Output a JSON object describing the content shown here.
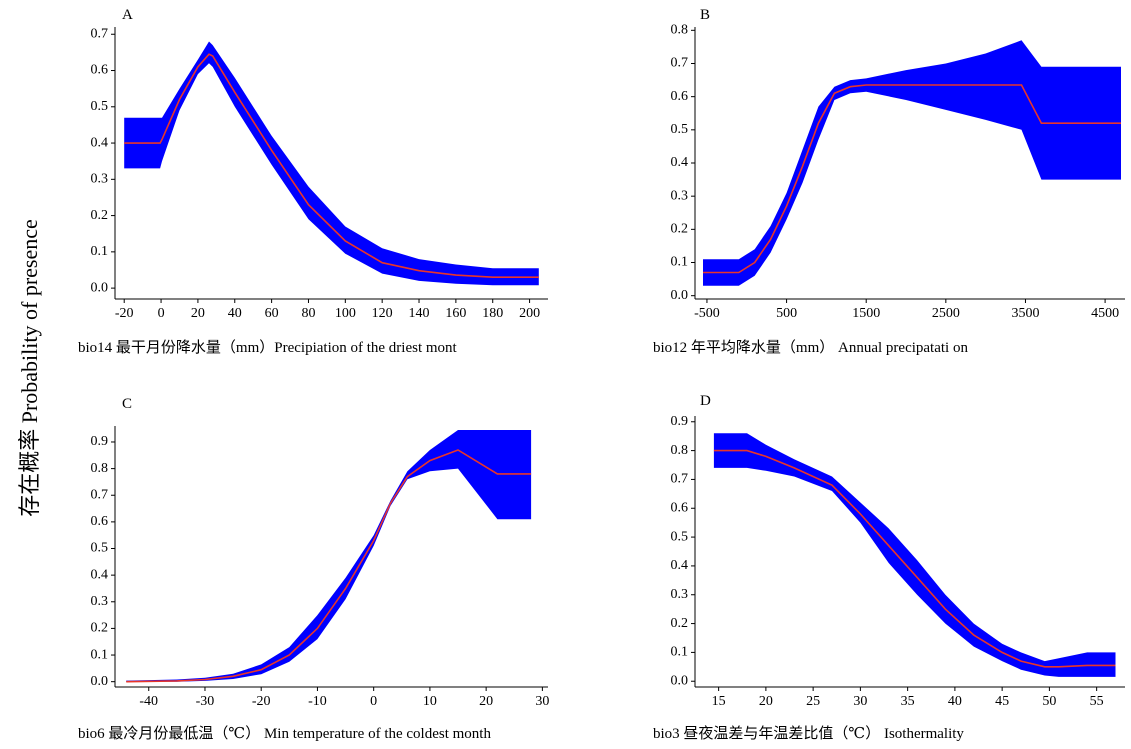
{
  "figure": {
    "ylabel": "存在概率 Probability of presence"
  },
  "colors": {
    "band": "#0000ff",
    "line": "#e8352a"
  },
  "chart_data": [
    {
      "type": "area",
      "panel": "A",
      "xlabel": "bio14  最干月份降水量（mm）Precipiation of the driest mont",
      "xlim": [
        -25,
        210
      ],
      "ylim": [
        -0.03,
        0.72
      ],
      "xticks": [
        -20,
        0,
        20,
        40,
        60,
        80,
        100,
        120,
        140,
        160,
        180,
        200
      ],
      "yticks": [
        0.0,
        0.1,
        0.2,
        0.3,
        0.4,
        0.5,
        0.6,
        0.7
      ],
      "x": [
        -20,
        -0.5,
        0.5,
        10,
        20,
        26,
        28,
        40,
        60,
        80,
        100,
        120,
        140,
        160,
        180,
        205
      ],
      "mean": [
        0.4,
        0.4,
        0.41,
        0.52,
        0.61,
        0.645,
        0.64,
        0.54,
        0.38,
        0.23,
        0.13,
        0.07,
        0.048,
        0.036,
        0.03,
        0.03
      ],
      "upper": [
        0.47,
        0.47,
        0.47,
        0.55,
        0.63,
        0.68,
        0.67,
        0.58,
        0.42,
        0.28,
        0.17,
        0.11,
        0.08,
        0.065,
        0.055,
        0.055
      ],
      "lower": [
        0.33,
        0.33,
        0.35,
        0.49,
        0.59,
        0.62,
        0.61,
        0.5,
        0.34,
        0.19,
        0.095,
        0.04,
        0.02,
        0.012,
        0.008,
        0.008
      ]
    },
    {
      "type": "area",
      "panel": "B",
      "xlabel": "bio12  年平均降水量（mm）  Annual precipatati on",
      "xlim": [
        -650,
        4750
      ],
      "ylim": [
        -0.01,
        0.81
      ],
      "xticks": [
        -500,
        500,
        1500,
        2500,
        3500,
        4500
      ],
      "yticks": [
        0.0,
        0.1,
        0.2,
        0.3,
        0.4,
        0.5,
        0.6,
        0.7,
        0.8
      ],
      "x": [
        -550,
        -100,
        100,
        300,
        500,
        700,
        900,
        1100,
        1300,
        1500,
        2000,
        2500,
        3000,
        3450,
        3700,
        4700
      ],
      "mean": [
        0.07,
        0.07,
        0.1,
        0.17,
        0.27,
        0.39,
        0.52,
        0.61,
        0.63,
        0.635,
        0.635,
        0.635,
        0.635,
        0.635,
        0.52,
        0.52
      ],
      "upper": [
        0.11,
        0.11,
        0.14,
        0.21,
        0.31,
        0.44,
        0.57,
        0.63,
        0.65,
        0.655,
        0.68,
        0.7,
        0.73,
        0.77,
        0.69,
        0.69
      ],
      "lower": [
        0.03,
        0.03,
        0.06,
        0.13,
        0.23,
        0.34,
        0.47,
        0.59,
        0.61,
        0.615,
        0.59,
        0.56,
        0.53,
        0.5,
        0.35,
        0.35
      ]
    },
    {
      "type": "area",
      "panel": "C",
      "xlabel": "bio6  最冷月份最低温（℃）  Min temperature of the coldest month",
      "xlim": [
        -46,
        31
      ],
      "ylim": [
        -0.02,
        0.96
      ],
      "xticks": [
        -40,
        -30,
        -20,
        -10,
        0,
        10,
        20,
        30
      ],
      "yticks": [
        0.0,
        0.1,
        0.2,
        0.3,
        0.4,
        0.5,
        0.6,
        0.7,
        0.8,
        0.9
      ],
      "x": [
        -44,
        -35,
        -30,
        -25,
        -20,
        -15,
        -10,
        -5,
        0,
        3,
        6,
        10,
        15,
        22,
        28
      ],
      "mean": [
        0.0,
        0.003,
        0.008,
        0.02,
        0.045,
        0.1,
        0.2,
        0.35,
        0.53,
        0.67,
        0.77,
        0.83,
        0.87,
        0.78,
        0.78
      ],
      "upper": [
        0.004,
        0.008,
        0.015,
        0.03,
        0.065,
        0.13,
        0.25,
        0.39,
        0.55,
        0.68,
        0.79,
        0.87,
        0.945,
        0.945,
        0.945
      ],
      "lower": [
        0.0,
        0.0,
        0.003,
        0.01,
        0.028,
        0.075,
        0.16,
        0.31,
        0.51,
        0.66,
        0.76,
        0.79,
        0.8,
        0.61,
        0.61
      ]
    },
    {
      "type": "area",
      "panel": "D",
      "xlabel": "bio3  昼夜温差与年温差比值（℃）  Isothermality",
      "xlim": [
        12.5,
        58
      ],
      "ylim": [
        -0.02,
        0.92
      ],
      "xticks": [
        15,
        20,
        25,
        30,
        35,
        40,
        45,
        50,
        55
      ],
      "yticks": [
        0.0,
        0.1,
        0.2,
        0.3,
        0.4,
        0.5,
        0.6,
        0.7,
        0.8,
        0.9
      ],
      "x": [
        14.5,
        18,
        20,
        23,
        27,
        30,
        33,
        36,
        39,
        42,
        45,
        47,
        49.5,
        51,
        54,
        57
      ],
      "mean": [
        0.8,
        0.8,
        0.78,
        0.74,
        0.68,
        0.58,
        0.47,
        0.36,
        0.25,
        0.16,
        0.1,
        0.07,
        0.05,
        0.05,
        0.055,
        0.055
      ],
      "upper": [
        0.86,
        0.86,
        0.82,
        0.77,
        0.71,
        0.62,
        0.53,
        0.42,
        0.3,
        0.2,
        0.13,
        0.1,
        0.07,
        0.08,
        0.1,
        0.1
      ],
      "lower": [
        0.74,
        0.74,
        0.73,
        0.71,
        0.66,
        0.55,
        0.41,
        0.3,
        0.2,
        0.12,
        0.07,
        0.04,
        0.02,
        0.015,
        0.015,
        0.015
      ]
    }
  ]
}
